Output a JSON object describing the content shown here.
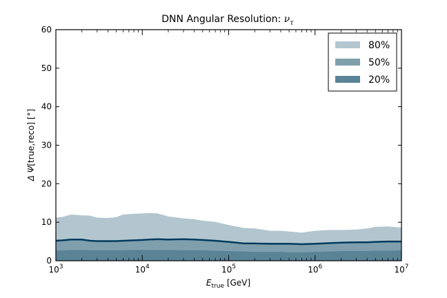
{
  "chart_data": {
    "type": "area",
    "title": "DNN Angular Resolution: ",
    "title_symbol": "ν",
    "title_subscript": "τ",
    "xlabel_main": "E",
    "xlabel_sub": "true",
    "xlabel_unit": " [GeV]",
    "ylabel_main": "Δ Ψ",
    "ylabel_rest": "[true,reco] [°]",
    "xscale": "log",
    "xlim": [
      1000,
      10000000
    ],
    "ylim": [
      0,
      60
    ],
    "yticks": [
      "0",
      "10",
      "20",
      "30",
      "40",
      "50",
      "60"
    ],
    "xticks": [
      {
        "base": "10",
        "exp": "3"
      },
      {
        "base": "10",
        "exp": "4"
      },
      {
        "base": "10",
        "exp": "5"
      },
      {
        "base": "10",
        "exp": "6"
      },
      {
        "base": "10",
        "exp": "7"
      }
    ],
    "grid": false,
    "legend_position": "top-right",
    "x": [
      1000,
      1200,
      1500,
      2000,
      2500,
      3000,
      4000,
      5000,
      6000,
      8000,
      10000,
      12000,
      15000,
      20000,
      30000,
      40000,
      50000,
      70000,
      100000,
      150000,
      200000,
      300000,
      400000,
      500000,
      700000,
      1000000,
      1500000,
      2000000,
      3000000,
      4000000,
      5000000,
      7000000,
      10000000
    ],
    "series": [
      {
        "name": "80%",
        "color": "#b3c6cf",
        "values": [
          11.2,
          11.4,
          12.0,
          11.8,
          11.7,
          11.2,
          11.1,
          11.3,
          12.0,
          12.2,
          12.3,
          12.4,
          12.3,
          11.5,
          11.0,
          10.8,
          10.4,
          10.1,
          9.3,
          8.5,
          8.4,
          7.8,
          7.8,
          7.6,
          7.3,
          7.8,
          8.0,
          8.0,
          8.1,
          8.4,
          8.8,
          8.9,
          8.6
        ]
      },
      {
        "name": "50%",
        "color": "#7f9fad",
        "values": [
          5.2,
          5.3,
          5.5,
          5.5,
          5.2,
          5.1,
          5.1,
          5.1,
          5.2,
          5.3,
          5.4,
          5.5,
          5.6,
          5.5,
          5.6,
          5.5,
          5.4,
          5.2,
          4.9,
          4.5,
          4.5,
          4.4,
          4.4,
          4.4,
          4.3,
          4.4,
          4.6,
          4.7,
          4.8,
          4.8,
          4.9,
          5.0,
          5.0
        ]
      },
      {
        "name": "20%",
        "color": "#5a8396",
        "values": [
          2.6,
          2.7,
          2.8,
          2.8,
          2.7,
          2.7,
          2.7,
          2.7,
          2.7,
          2.8,
          2.8,
          2.8,
          2.8,
          2.8,
          2.7,
          2.7,
          2.7,
          2.6,
          2.5,
          2.4,
          2.3,
          2.3,
          2.3,
          2.2,
          2.2,
          2.3,
          2.4,
          2.5,
          2.5,
          2.5,
          2.6,
          2.6,
          2.7
        ]
      }
    ],
    "median_line_color": "#003a5c"
  }
}
